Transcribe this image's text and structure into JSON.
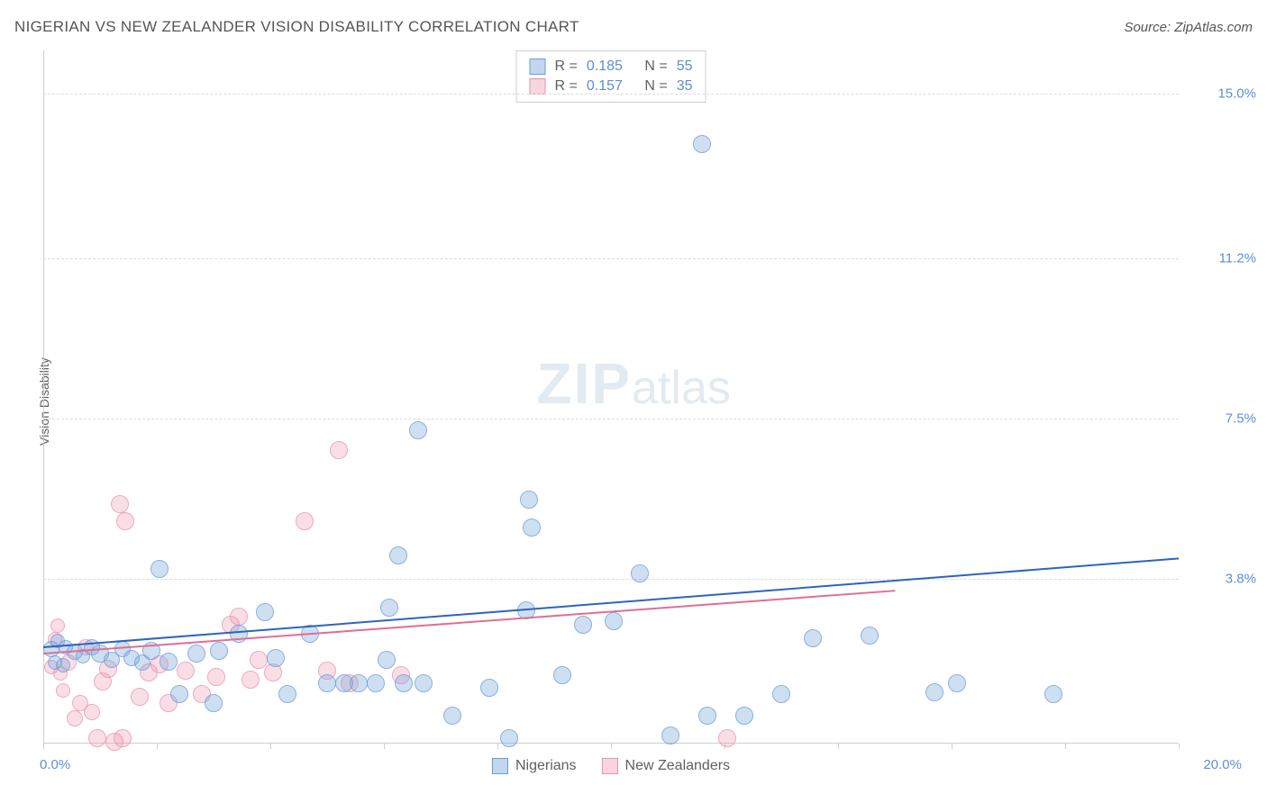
{
  "header": {
    "title": "NIGERIAN VS NEW ZEALANDER VISION DISABILITY CORRELATION CHART",
    "source": "Source: ZipAtlas.com"
  },
  "axes": {
    "y_label": "Vision Disability",
    "x_min_label": "0.0%",
    "x_max_label": "20.0%",
    "xlim": [
      0,
      20
    ],
    "ylim": [
      0,
      16
    ],
    "label_color": "#5b8fd6",
    "axis_color": "#cfcfcf",
    "grid_color": "#dcdcdc",
    "y_ticks": [
      {
        "v": 3.8,
        "label": "3.8%"
      },
      {
        "v": 7.5,
        "label": "7.5%"
      },
      {
        "v": 11.2,
        "label": "11.2%"
      },
      {
        "v": 15.0,
        "label": "15.0%"
      }
    ],
    "x_tick_step": 2.0
  },
  "series": {
    "a": {
      "name": "Nigerians",
      "fill": "rgba(120,165,220,0.45)",
      "stroke": "#6a9bd8",
      "trend_color": "#2e63c0",
      "R": "0.185",
      "N": "55",
      "trend": {
        "x1": 0,
        "y1": 2.25,
        "x2": 20.0,
        "y2": 4.3
      },
      "points": [
        {
          "x": 0.15,
          "y": 2.55,
          "r": 9
        },
        {
          "x": 0.2,
          "y": 2.2,
          "r": 8
        },
        {
          "x": 0.25,
          "y": 2.7,
          "r": 8
        },
        {
          "x": 0.35,
          "y": 2.15,
          "r": 8
        },
        {
          "x": 0.4,
          "y": 2.55,
          "r": 8
        },
        {
          "x": 0.55,
          "y": 2.5,
          "r": 9
        },
        {
          "x": 0.7,
          "y": 2.35,
          "r": 8
        },
        {
          "x": 0.85,
          "y": 2.6,
          "r": 9
        },
        {
          "x": 1.0,
          "y": 2.5,
          "r": 10
        },
        {
          "x": 1.2,
          "y": 2.3,
          "r": 9
        },
        {
          "x": 1.4,
          "y": 2.55,
          "r": 9
        },
        {
          "x": 1.55,
          "y": 2.35,
          "r": 9
        },
        {
          "x": 1.75,
          "y": 2.25,
          "r": 9
        },
        {
          "x": 1.9,
          "y": 2.55,
          "r": 10
        },
        {
          "x": 2.05,
          "y": 4.45,
          "r": 10
        },
        {
          "x": 2.2,
          "y": 2.3,
          "r": 10
        },
        {
          "x": 2.4,
          "y": 1.55,
          "r": 10
        },
        {
          "x": 2.7,
          "y": 2.5,
          "r": 10
        },
        {
          "x": 3.0,
          "y": 1.35,
          "r": 10
        },
        {
          "x": 3.1,
          "y": 2.55,
          "r": 10
        },
        {
          "x": 3.45,
          "y": 2.95,
          "r": 10
        },
        {
          "x": 3.9,
          "y": 3.45,
          "r": 10
        },
        {
          "x": 4.1,
          "y": 2.4,
          "r": 10
        },
        {
          "x": 4.3,
          "y": 1.55,
          "r": 10
        },
        {
          "x": 4.7,
          "y": 2.95,
          "r": 10
        },
        {
          "x": 5.0,
          "y": 1.8,
          "r": 10
        },
        {
          "x": 5.3,
          "y": 1.8,
          "r": 10
        },
        {
          "x": 5.55,
          "y": 1.8,
          "r": 10
        },
        {
          "x": 5.85,
          "y": 1.8,
          "r": 10
        },
        {
          "x": 6.05,
          "y": 2.35,
          "r": 10
        },
        {
          "x": 6.35,
          "y": 1.8,
          "r": 10
        },
        {
          "x": 6.7,
          "y": 1.8,
          "r": 10
        },
        {
          "x": 6.25,
          "y": 4.75,
          "r": 10
        },
        {
          "x": 6.6,
          "y": 7.65,
          "r": 10
        },
        {
          "x": 6.1,
          "y": 3.55,
          "r": 10
        },
        {
          "x": 7.2,
          "y": 1.05,
          "r": 10
        },
        {
          "x": 7.85,
          "y": 1.7,
          "r": 10
        },
        {
          "x": 8.2,
          "y": 0.55,
          "r": 10
        },
        {
          "x": 8.5,
          "y": 3.5,
          "r": 10
        },
        {
          "x": 8.6,
          "y": 5.4,
          "r": 10
        },
        {
          "x": 8.55,
          "y": 6.05,
          "r": 10
        },
        {
          "x": 9.15,
          "y": 2.0,
          "r": 10
        },
        {
          "x": 9.5,
          "y": 3.15,
          "r": 10
        },
        {
          "x": 10.05,
          "y": 3.25,
          "r": 10
        },
        {
          "x": 10.5,
          "y": 4.35,
          "r": 10
        },
        {
          "x": 11.05,
          "y": 0.6,
          "r": 10
        },
        {
          "x": 11.7,
          "y": 1.05,
          "r": 10
        },
        {
          "x": 11.6,
          "y": 14.25,
          "r": 10
        },
        {
          "x": 12.35,
          "y": 1.05,
          "r": 10
        },
        {
          "x": 13.0,
          "y": 1.55,
          "r": 10
        },
        {
          "x": 13.55,
          "y": 2.85,
          "r": 10
        },
        {
          "x": 14.55,
          "y": 2.9,
          "r": 10
        },
        {
          "x": 15.7,
          "y": 1.6,
          "r": 10
        },
        {
          "x": 17.8,
          "y": 1.55,
          "r": 10
        },
        {
          "x": 16.1,
          "y": 1.8,
          "r": 10
        }
      ]
    },
    "b": {
      "name": "New Zealanders",
      "fill": "rgba(240,150,175,0.40)",
      "stroke": "#e693ad",
      "trend_color": "#e06e94",
      "R": "0.157",
      "N": "35",
      "trend": {
        "x1": 0,
        "y1": 2.1,
        "x2": 15.0,
        "y2": 3.55
      },
      "points": [
        {
          "x": 0.15,
          "y": 2.1,
          "r": 8
        },
        {
          "x": 0.2,
          "y": 2.75,
          "r": 8
        },
        {
          "x": 0.25,
          "y": 3.05,
          "r": 8
        },
        {
          "x": 0.3,
          "y": 1.95,
          "r": 8
        },
        {
          "x": 0.35,
          "y": 1.55,
          "r": 8
        },
        {
          "x": 0.45,
          "y": 2.25,
          "r": 9
        },
        {
          "x": 0.55,
          "y": 0.95,
          "r": 9
        },
        {
          "x": 0.65,
          "y": 1.3,
          "r": 9
        },
        {
          "x": 0.75,
          "y": 2.6,
          "r": 9
        },
        {
          "x": 0.85,
          "y": 1.1,
          "r": 9
        },
        {
          "x": 0.95,
          "y": 0.55,
          "r": 10
        },
        {
          "x": 1.05,
          "y": 1.85,
          "r": 10
        },
        {
          "x": 1.15,
          "y": 2.15,
          "r": 10
        },
        {
          "x": 1.25,
          "y": 0.45,
          "r": 10
        },
        {
          "x": 1.4,
          "y": 0.55,
          "r": 10
        },
        {
          "x": 1.45,
          "y": 5.55,
          "r": 10
        },
        {
          "x": 1.35,
          "y": 5.95,
          "r": 10
        },
        {
          "x": 1.7,
          "y": 1.5,
          "r": 10
        },
        {
          "x": 1.85,
          "y": 2.05,
          "r": 10
        },
        {
          "x": 2.05,
          "y": 2.25,
          "r": 10
        },
        {
          "x": 2.2,
          "y": 1.35,
          "r": 10
        },
        {
          "x": 2.5,
          "y": 2.1,
          "r": 10
        },
        {
          "x": 2.8,
          "y": 1.55,
          "r": 10
        },
        {
          "x": 3.05,
          "y": 1.95,
          "r": 10
        },
        {
          "x": 3.3,
          "y": 3.15,
          "r": 10
        },
        {
          "x": 3.45,
          "y": 3.35,
          "r": 10
        },
        {
          "x": 3.65,
          "y": 1.9,
          "r": 10
        },
        {
          "x": 3.8,
          "y": 2.35,
          "r": 10
        },
        {
          "x": 4.05,
          "y": 2.05,
          "r": 10
        },
        {
          "x": 4.6,
          "y": 5.55,
          "r": 10
        },
        {
          "x": 5.0,
          "y": 2.1,
          "r": 10
        },
        {
          "x": 5.2,
          "y": 7.2,
          "r": 10
        },
        {
          "x": 5.4,
          "y": 1.8,
          "r": 10
        },
        {
          "x": 6.3,
          "y": 2.0,
          "r": 10
        },
        {
          "x": 12.05,
          "y": 0.55,
          "r": 10
        }
      ]
    }
  },
  "watermark": {
    "zip": "ZIP",
    "atlas": "atlas"
  },
  "legend_top": {
    "rows": [
      {
        "swatch_series": "a",
        "r_label": "R =",
        "n_label": "N ="
      },
      {
        "swatch_series": "b",
        "r_label": "R =",
        "n_label": "N ="
      }
    ]
  }
}
